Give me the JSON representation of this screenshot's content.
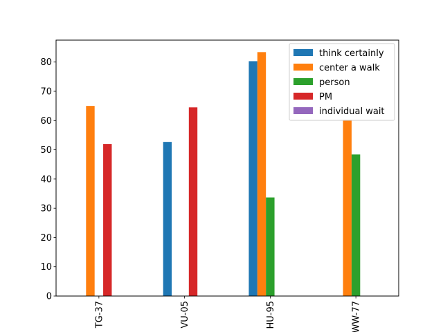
{
  "chart_data": {
    "type": "bar",
    "title": "",
    "xlabel": "",
    "ylabel": "",
    "categories": [
      "TG-37",
      "VU-05",
      "HU-95",
      "WW-77"
    ],
    "ylim": [
      0,
      87.5
    ],
    "yticks": [
      0,
      10,
      20,
      30,
      40,
      50,
      60,
      70,
      80
    ],
    "grid": false,
    "legend_position": "top-right",
    "series": [
      {
        "name": "think certainly",
        "color": "#1f77b4",
        "values": [
          0,
          52.7,
          80.3,
          0
        ]
      },
      {
        "name": "center a walk",
        "color": "#ff7f0e",
        "values": [
          65.0,
          0,
          83.4,
          60.3
        ]
      },
      {
        "name": "person",
        "color": "#2ca02c",
        "values": [
          0,
          0,
          33.7,
          48.4
        ]
      },
      {
        "name": "PM",
        "color": "#d62728",
        "values": [
          52.0,
          64.5,
          0,
          0
        ]
      },
      {
        "name": "individual wait",
        "color": "#9467bd",
        "values": [
          0,
          0,
          0,
          0
        ]
      }
    ]
  }
}
